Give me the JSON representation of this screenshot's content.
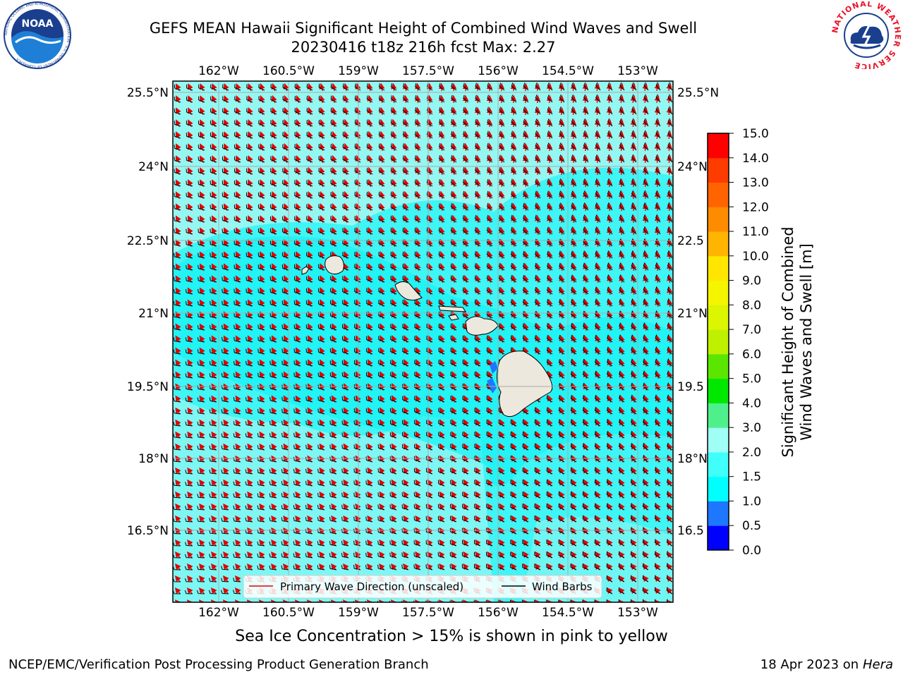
{
  "header": {
    "title": "GEFS MEAN Hawaii Significant Height of Combined Wind Waves and Swell",
    "subtitle": "20230416 t18z 216h fcst   Max: 2.27"
  },
  "logos": {
    "noaa_text": "NOAA",
    "noaa_ring_text": "NATIONAL OCEANIC AND ATMOSPHERIC ADMINISTRATION · U.S. DEPARTMENT OF COMMERCE",
    "nws_ring_text": "NATIONAL WEATHER SERVICE"
  },
  "map": {
    "lon_labels": [
      "162°W",
      "160.5°W",
      "159°W",
      "157.5°W",
      "156°W",
      "154.5°W",
      "153°W"
    ],
    "lat_labels_left": [
      "25.5°N",
      "24°N",
      "22.5°N",
      "21°N",
      "19.5°N",
      "18°N",
      "16.5°N"
    ],
    "lat_labels_right": [
      "25.5°N",
      "24°N",
      "22.5",
      "21°N",
      "19.5",
      "18°N",
      "16.5"
    ],
    "legend": {
      "wave_direction": "Primary Wave Direction (unscaled)",
      "wind_barbs": "Wind Barbs"
    },
    "colors": {
      "ocean_base": "#3ff5f5",
      "ocean_light": "#9ff7f2",
      "ocean_bright": "#17f2f5",
      "land": "#ede8dd",
      "wave_arrow": "#e00000",
      "wind_barb": "#000000",
      "grid": "#aaaaaa"
    }
  },
  "colorbar": {
    "label_line1": "Significant Height of Combined",
    "label_line2": "Wind Waves and Swell [m]",
    "ticks": [
      "0.0",
      "0.5",
      "1.0",
      "1.5",
      "2.0",
      "3.0",
      "4.0",
      "5.0",
      "6.0",
      "7.0",
      "8.0",
      "9.0",
      "10.0",
      "11.0",
      "12.0",
      "13.0",
      "14.0",
      "15.0"
    ],
    "colors": [
      "#0000ff",
      "#1e78ff",
      "#00ffff",
      "#40fffa",
      "#a0fff5",
      "#4ff08c",
      "#00e800",
      "#5ae600",
      "#bef000",
      "#dcf500",
      "#f5f500",
      "#ffe600",
      "#ffb400",
      "#ff8c00",
      "#ff6400",
      "#ff3c00",
      "#ff0000"
    ]
  },
  "footer": {
    "sea_ice_note": "Sea Ice Concentration > 15% is shown in pink to yellow",
    "left": "NCEP/EMC/Verification Post Processing Product Generation Branch",
    "right_date": "18 Apr 2023 on ",
    "right_host": "Hera"
  }
}
